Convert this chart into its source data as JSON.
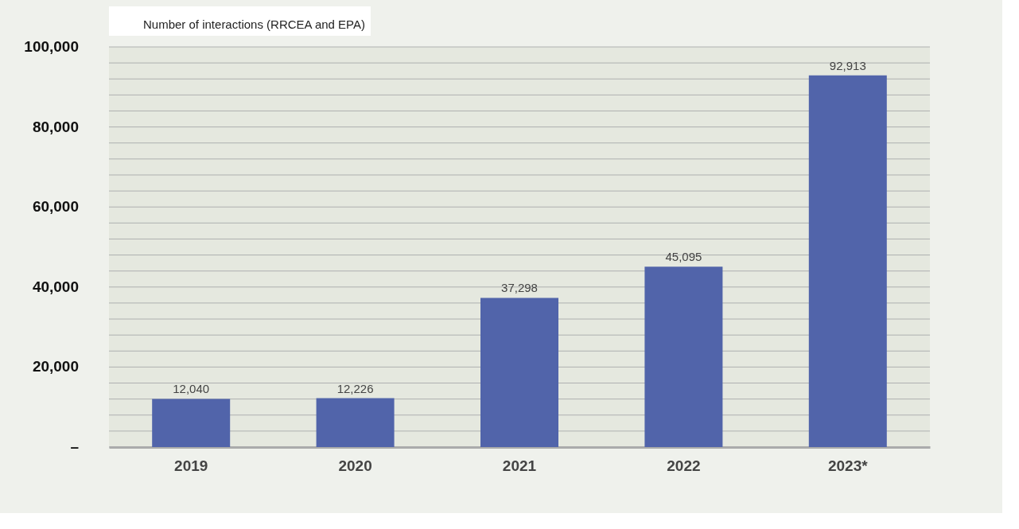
{
  "chart_data": {
    "type": "bar",
    "categories": [
      "2019",
      "2020",
      "2021",
      "2022",
      "2023*"
    ],
    "series": [
      {
        "name": "Number of interactions (RRCEA and EPA)",
        "color": "#5164aa",
        "values": [
          12040,
          12226,
          37298,
          45095,
          92913
        ],
        "value_labels": [
          "12,040",
          "12,226",
          "37,298",
          "45,095",
          "92,913"
        ]
      }
    ],
    "ylim": [
      0,
      100000
    ],
    "yticks": [
      {
        "value": 0,
        "label": "–"
      },
      {
        "value": 4000,
        "label": null
      },
      {
        "value": 8000,
        "label": null
      },
      {
        "value": 12000,
        "label": null
      },
      {
        "value": 16000,
        "label": null
      },
      {
        "value": 20000,
        "label": "20,000"
      },
      {
        "value": 24000,
        "label": null
      },
      {
        "value": 28000,
        "label": null
      },
      {
        "value": 32000,
        "label": null
      },
      {
        "value": 36000,
        "label": null
      },
      {
        "value": 40000,
        "label": "40,000"
      },
      {
        "value": 44000,
        "label": null
      },
      {
        "value": 48000,
        "label": null
      },
      {
        "value": 52000,
        "label": null
      },
      {
        "value": 56000,
        "label": null
      },
      {
        "value": 60000,
        "label": "60,000"
      },
      {
        "value": 64000,
        "label": null
      },
      {
        "value": 68000,
        "label": null
      },
      {
        "value": 72000,
        "label": null
      },
      {
        "value": 76000,
        "label": null
      },
      {
        "value": 80000,
        "label": "80,000"
      },
      {
        "value": 84000,
        "label": null
      },
      {
        "value": 88000,
        "label": null
      },
      {
        "value": 92000,
        "label": null
      },
      {
        "value": 96000,
        "label": null
      },
      {
        "value": 100000,
        "label": "100,000"
      }
    ],
    "grid": "y",
    "legend": "top"
  }
}
